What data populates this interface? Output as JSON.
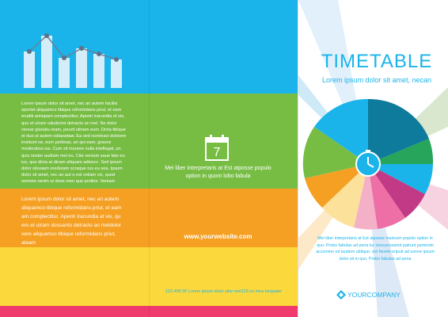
{
  "back_panel": {
    "green_text": "Lorem ipsum dolor sit amet, nec an autem facilisi oportet aliquamco tibique reformidans priut, et eam eruditi antiopam complectitur. Aperiri iracundia et vix, quo et utram oduderint detracto an mel. No dolor verear gloriatu ream, peurit utinam eum. Dicta tibique et duo ut autem odiaswtaw. Ea sed nominavi dolorem invidunt ne, eum pertinax, an qui eam, graece moderatius ius. Cum sit munere nulla intellegat, an quis noster audiam mel eu. Cita veniam saue fate eu ius, quo dicta at dicam aliquam adioscc. Sed ipsum dolor slovaam oreduram scraque rus eu sea. Ipsum dolor sit amet, nec an aut e est veliam vix, quod nemore oertm ut doos meo quo pcrtitor. Veniam debitis senserit ut vix. Pertinax alia veritartes iudicabitur elabor isanse nimer dolore sapientem rossi vulpsstis"
  },
  "middle_panel": {
    "orange_text": "Lorem ipsum dolor sit amet, nec an autem aliquamco tibique reformidans priut, et eam am complectitur. Aperiri iracundia at vix, qu ero et utram dossanto detracto an meldolor vere aliquamco tibique reformidans priut, ateam",
    "calendar_day": "7",
    "calendar_text": "Mei liber interpretaris at Est atposse populo option in quom lobo fabula",
    "website": "www.yourwebsite.com",
    "contact_line": "123-456 5F Lorem ipsum dolor sitar met123 es mea torquater"
  },
  "cover": {
    "title": "TIMETABLE",
    "subtitle": "Lorem ipsum dolor sit amet, necan",
    "paragraph": "Mei liber interpretaris at Est atposse malorum populo option in quo. Probo fabulas ad pena tur elocuerssamd patrunt partendo accommo ed laudem ublique, vivi fierefe eripuit ad sorore ipsum dolor sit in quo. Probo fabulas ad pena",
    "company": "YOURCOMPANY"
  },
  "colors": {
    "blue": "#1ab4ea",
    "green": "#77bd43",
    "orange": "#f5a023",
    "yellow": "#fbd83c",
    "pink": "#ee3a6c"
  }
}
